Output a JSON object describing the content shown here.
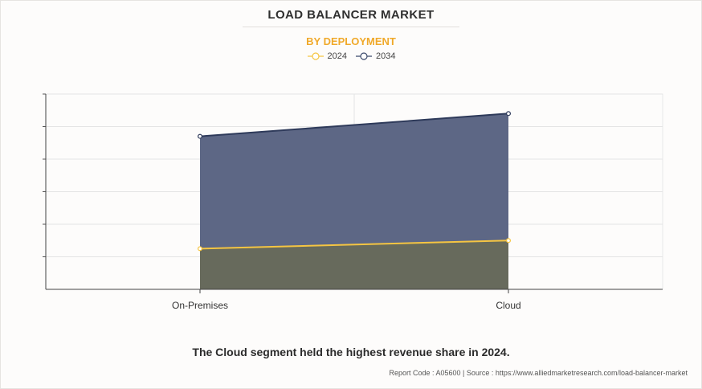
{
  "header": {
    "title": "LOAD BALANCER MARKET",
    "subtitle": "BY DEPLOYMENT"
  },
  "legend": [
    {
      "label": "2024",
      "color": "#f5c542"
    },
    {
      "label": "2034",
      "color": "#3b4a6b"
    }
  ],
  "chart_data": {
    "type": "area",
    "categories": [
      "On-Premises",
      "Cloud"
    ],
    "series": [
      {
        "name": "2034",
        "values": [
          4.7,
          5.4
        ],
        "line_color": "#2e3a5a",
        "fill_color": "#5d6785"
      },
      {
        "name": "2024",
        "values": [
          1.25,
          1.5
        ],
        "line_color": "#f5c542",
        "fill_color": "#676a5c"
      }
    ],
    "ylim": [
      0,
      6
    ],
    "grid": true,
    "y_tick_labels_shown": false,
    "legend_position": "top-center"
  },
  "caption": "The Cloud segment held the highest revenue share in 2024.",
  "footer": "Report Code : A05600  |  Source : https://www.alliedmarketresearch.com/load-balancer-market"
}
